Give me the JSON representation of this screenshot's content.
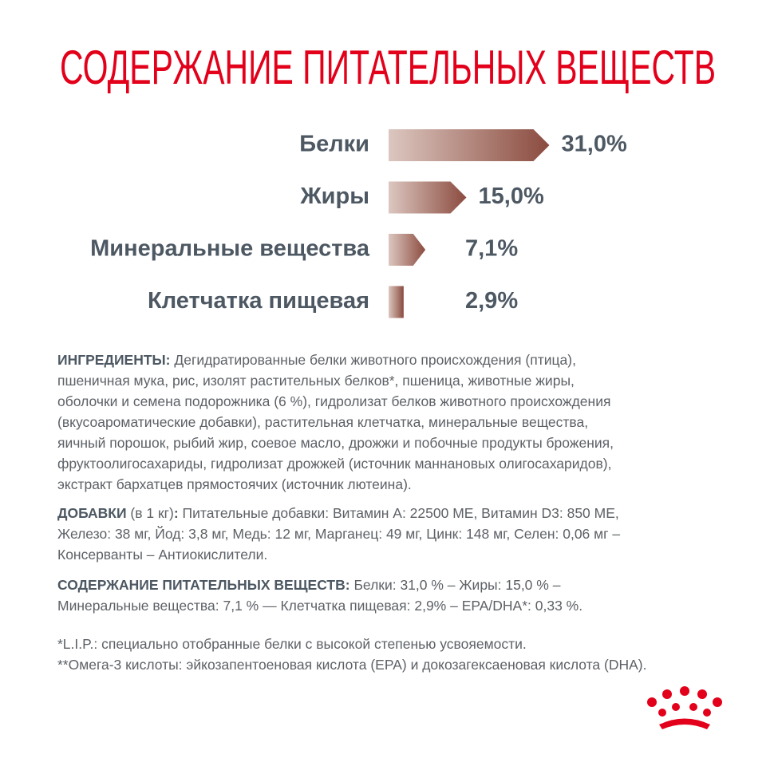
{
  "chart_data": {
    "type": "bar",
    "orientation": "horizontal",
    "title": "СОДЕРЖАНИЕ ПИТАТЕЛЬНЫХ ВЕЩЕСТВ",
    "categories": [
      "Белки",
      "Жиры",
      "Минеральные вещества",
      "Клетчатка пищевая"
    ],
    "values": [
      31.0,
      15.0,
      7.1,
      2.9
    ],
    "value_labels": [
      "31,0%",
      "15,0%",
      "7,1%",
      "2,9%"
    ],
    "color": [
      "#dcc7c0",
      "#8b4b3f"
    ]
  },
  "document": {
    "ingredients": {
      "label": "ИНГРЕДИЕНТЫ:",
      "lines": [
        " Дегидратированные белки животного происхождения (птица),",
        "пшеничная мука, рис, изолят растительных белков*, пшеница, животные жиры,",
        "оболочки и семена подорожника (6 %), гидролизат белков животного происхождения",
        "(вкусоароматические добавки), растительная клетчатка, минеральные вещества,",
        "яичный порошок, рыбий жир, соевое масло, дрожжи и побочные продукты брожения,",
        "фруктоолигосахариды, гидролизат дрожжей (источник маннановых олигосахаридов),",
        "экстракт бархатцев прямостоячих (источник лютеина)."
      ]
    },
    "additives": {
      "label": "ДОБАВКИ",
      "unit": " (в 1 кг)",
      "label_end": ":",
      "lines": [
        " Питательные добавки: Витамин А: 22500 МЕ, Витамин D3: 850 МЕ,",
        "Железо: 38 мг, Йод: 3,8 мг, Медь: 12 мг, Марганец: 49 мг, Цинк: 148 мг, Селен: 0,06 мг –",
        "Консерванты – Антиокислители."
      ]
    },
    "nutrients": {
      "label": "СОДЕРЖАНИЕ ПИТАТЕЛЬНЫХ ВЕЩЕСТВ:",
      "lines": [
        " Белки: 31,0 % – Жиры: 15,0 % –",
        "Минеральные вещества: 7,1 % — Клетчатка пищевая: 2,9% – EPA/DHA*: 0,33 %."
      ]
    },
    "footnotes": [
      "*L.I.P.: специально отобранные белки с высокой степенью усвояемости.",
      "**Омега-3 кислоты: эйкозапентоеновая кислота (EPA) и докозагексаеновая кислота (DHA)."
    ]
  }
}
